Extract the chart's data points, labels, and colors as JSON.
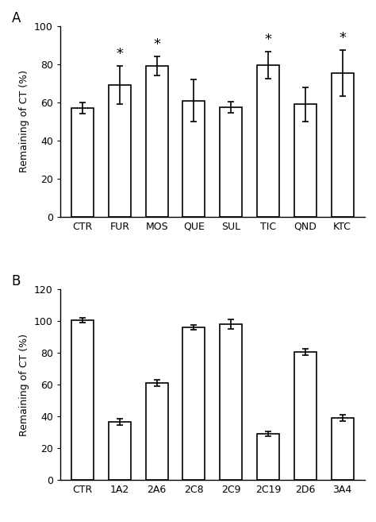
{
  "panel_A": {
    "categories": [
      "CTR",
      "FUR",
      "MOS",
      "QUE",
      "SUL",
      "TIC",
      "QND",
      "KTC"
    ],
    "values": [
      57,
      69,
      79,
      61,
      57.5,
      79.5,
      59,
      75.5
    ],
    "errors": [
      3,
      10,
      5,
      11,
      3,
      7,
      9,
      12
    ],
    "significant": [
      false,
      true,
      true,
      false,
      false,
      true,
      false,
      true
    ],
    "ylabel": "Remaining of CT (%)",
    "ylim": [
      0,
      100
    ],
    "yticks": [
      0,
      20,
      40,
      60,
      80,
      100
    ],
    "label": "A"
  },
  "panel_B": {
    "categories": [
      "CTR",
      "1A2",
      "2A6",
      "2C8",
      "2C9",
      "2C19",
      "2D6",
      "3A4"
    ],
    "values": [
      100.5,
      36.5,
      61,
      96,
      98,
      29,
      80.5,
      39
    ],
    "errors": [
      1.5,
      2,
      2,
      1.5,
      3,
      1.5,
      2,
      2
    ],
    "ylabel": "Remaining of CT (%)",
    "ylim": [
      0,
      120
    ],
    "yticks": [
      0,
      20,
      40,
      60,
      80,
      100,
      120
    ],
    "label": "B"
  },
  "bar_color": "#ffffff",
  "bar_edgecolor": "#000000",
  "bar_linewidth": 1.2,
  "errorbar_color": "#000000",
  "errorbar_linewidth": 1.2,
  "errorbar_capsize": 3,
  "star_fontsize": 13,
  "tick_fontsize": 9,
  "axis_label_fontsize": 9,
  "panel_label_fontsize": 12,
  "background_color": "#ffffff"
}
